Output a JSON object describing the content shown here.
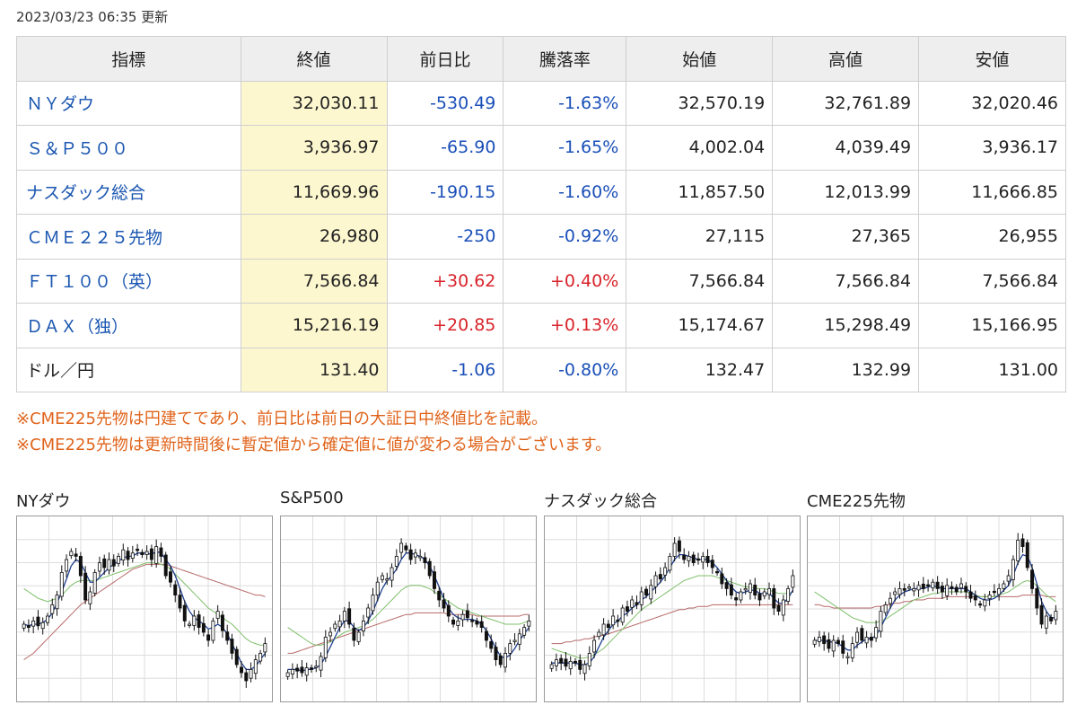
{
  "updated": "2023/03/23 06:35 更新",
  "table": {
    "headers": [
      "指標",
      "終値",
      "前日比",
      "騰落率",
      "始値",
      "高値",
      "安値"
    ],
    "rows": [
      {
        "name": "ＮＹダウ",
        "close": "32,030.11",
        "change": "-530.49",
        "rate": "-1.63%",
        "open": "32,570.19",
        "high": "32,761.89",
        "low": "32,020.46",
        "dir": "neg",
        "link": true
      },
      {
        "name": "Ｓ＆Ｐ５００",
        "close": "3,936.97",
        "change": "-65.90",
        "rate": "-1.65%",
        "open": "4,002.04",
        "high": "4,039.49",
        "low": "3,936.17",
        "dir": "neg",
        "link": true
      },
      {
        "name": "ナスダック総合",
        "close": "11,669.96",
        "change": "-190.15",
        "rate": "-1.60%",
        "open": "11,857.50",
        "high": "12,013.99",
        "low": "11,666.85",
        "dir": "neg",
        "link": true
      },
      {
        "name": "ＣＭＥ２２５先物",
        "close": "26,980",
        "change": "-250",
        "rate": "-0.92%",
        "open": "27,115",
        "high": "27,365",
        "low": "26,955",
        "dir": "neg",
        "link": true
      },
      {
        "name": "ＦＴ１００（英）",
        "close": "7,566.84",
        "change": "+30.62",
        "rate": "+0.40%",
        "open": "7,566.84",
        "high": "7,566.84",
        "low": "7,566.84",
        "dir": "pos",
        "link": true
      },
      {
        "name": "ＤＡＸ（独）",
        "close": "15,216.19",
        "change": "+20.85",
        "rate": "+0.13%",
        "open": "15,174.67",
        "high": "15,298.49",
        "low": "15,166.95",
        "dir": "pos",
        "link": true
      },
      {
        "name": "ドル／円",
        "close": "131.40",
        "change": "-1.06",
        "rate": "-0.80%",
        "open": "132.47",
        "high": "132.99",
        "low": "131.00",
        "dir": "neg",
        "link": false
      }
    ]
  },
  "notes": [
    "※CME225先物は円建てであり、前日比は前日の大証日中終値比を記載。",
    "※CME225先物は更新時間後に暫定値から確定値に値が変わる場合がございます。"
  ],
  "colors": {
    "up_candle": "#ffffff",
    "down_candle": "#111111",
    "ma_short": "#1f3f8f",
    "ma_mid": "#7fbf6a",
    "ma_long": "#b86a6a",
    "grid": "#dddddd"
  },
  "chart_data": [
    {
      "type": "candlestick",
      "title": "NYダウ",
      "closes": [
        0.4,
        0.38,
        0.42,
        0.39,
        0.41,
        0.45,
        0.52,
        0.58,
        0.72,
        0.8,
        0.85,
        0.82,
        0.7,
        0.55,
        0.6,
        0.72,
        0.78,
        0.75,
        0.8,
        0.76,
        0.82,
        0.86,
        0.8,
        0.84,
        0.86,
        0.83,
        0.85,
        0.8,
        0.88,
        0.82,
        0.7,
        0.66,
        0.58,
        0.5,
        0.42,
        0.4,
        0.45,
        0.38,
        0.35,
        0.3,
        0.42,
        0.48,
        0.36,
        0.3,
        0.22,
        0.15,
        0.1,
        0.05,
        0.12,
        0.18,
        0.22,
        0.28
      ],
      "ma_short": [
        0.4,
        0.39,
        0.4,
        0.4,
        0.41,
        0.43,
        0.47,
        0.53,
        0.6,
        0.68,
        0.76,
        0.8,
        0.78,
        0.72,
        0.66,
        0.66,
        0.69,
        0.72,
        0.75,
        0.77,
        0.79,
        0.81,
        0.82,
        0.82,
        0.84,
        0.84,
        0.84,
        0.83,
        0.85,
        0.84,
        0.8,
        0.76,
        0.7,
        0.62,
        0.54,
        0.48,
        0.44,
        0.42,
        0.4,
        0.37,
        0.38,
        0.4,
        0.38,
        0.34,
        0.28,
        0.22,
        0.16,
        0.12,
        0.12,
        0.14,
        0.18,
        0.22
      ],
      "ma_mid": [
        0.62,
        0.6,
        0.58,
        0.56,
        0.55,
        0.54,
        0.55,
        0.56,
        0.58,
        0.61,
        0.64,
        0.66,
        0.67,
        0.67,
        0.67,
        0.67,
        0.68,
        0.69,
        0.7,
        0.71,
        0.72,
        0.73,
        0.74,
        0.75,
        0.76,
        0.77,
        0.78,
        0.78,
        0.78,
        0.77,
        0.76,
        0.74,
        0.71,
        0.68,
        0.65,
        0.62,
        0.59,
        0.56,
        0.53,
        0.5,
        0.48,
        0.46,
        0.44,
        0.42,
        0.4,
        0.37,
        0.34,
        0.31,
        0.29,
        0.28,
        0.27,
        0.27
      ],
      "ma_long": [
        0.18,
        0.2,
        0.22,
        0.25,
        0.28,
        0.31,
        0.34,
        0.37,
        0.4,
        0.43,
        0.46,
        0.49,
        0.52,
        0.54,
        0.56,
        0.58,
        0.6,
        0.62,
        0.64,
        0.66,
        0.68,
        0.7,
        0.72,
        0.74,
        0.75,
        0.76,
        0.77,
        0.77,
        0.77,
        0.77,
        0.77,
        0.76,
        0.75,
        0.74,
        0.73,
        0.72,
        0.71,
        0.7,
        0.69,
        0.68,
        0.67,
        0.66,
        0.65,
        0.64,
        0.63,
        0.62,
        0.61,
        0.6,
        0.59,
        0.58,
        0.58,
        0.57
      ]
    },
    {
      "type": "candlestick",
      "title": "S&P500",
      "closes": [
        0.1,
        0.12,
        0.11,
        0.1,
        0.13,
        0.12,
        0.14,
        0.2,
        0.32,
        0.35,
        0.4,
        0.42,
        0.48,
        0.4,
        0.3,
        0.35,
        0.42,
        0.5,
        0.58,
        0.66,
        0.7,
        0.68,
        0.75,
        0.82,
        0.9,
        0.86,
        0.8,
        0.84,
        0.82,
        0.78,
        0.7,
        0.62,
        0.55,
        0.5,
        0.45,
        0.4,
        0.42,
        0.46,
        0.44,
        0.42,
        0.4,
        0.38,
        0.3,
        0.25,
        0.18,
        0.15,
        0.22,
        0.28,
        0.3,
        0.34,
        0.38,
        0.42
      ],
      "ma_short": [
        0.12,
        0.12,
        0.12,
        0.11,
        0.12,
        0.12,
        0.13,
        0.15,
        0.2,
        0.26,
        0.32,
        0.38,
        0.42,
        0.42,
        0.38,
        0.36,
        0.38,
        0.42,
        0.48,
        0.55,
        0.62,
        0.67,
        0.7,
        0.74,
        0.8,
        0.84,
        0.84,
        0.83,
        0.82,
        0.8,
        0.76,
        0.7,
        0.63,
        0.56,
        0.5,
        0.46,
        0.44,
        0.43,
        0.43,
        0.43,
        0.42,
        0.4,
        0.36,
        0.31,
        0.25,
        0.2,
        0.19,
        0.21,
        0.25,
        0.3,
        0.34,
        0.38
      ],
      "ma_mid": [
        0.38,
        0.36,
        0.34,
        0.32,
        0.3,
        0.28,
        0.27,
        0.27,
        0.28,
        0.29,
        0.31,
        0.33,
        0.35,
        0.36,
        0.37,
        0.38,
        0.39,
        0.41,
        0.43,
        0.46,
        0.49,
        0.52,
        0.55,
        0.58,
        0.61,
        0.63,
        0.64,
        0.64,
        0.64,
        0.63,
        0.62,
        0.6,
        0.58,
        0.56,
        0.54,
        0.52,
        0.5,
        0.49,
        0.48,
        0.47,
        0.46,
        0.45,
        0.44,
        0.43,
        0.42,
        0.41,
        0.4,
        0.4,
        0.4,
        0.4,
        0.41,
        0.42
      ],
      "ma_long": [
        0.22,
        0.22,
        0.23,
        0.24,
        0.25,
        0.26,
        0.27,
        0.28,
        0.29,
        0.3,
        0.31,
        0.32,
        0.33,
        0.34,
        0.35,
        0.36,
        0.37,
        0.38,
        0.39,
        0.4,
        0.41,
        0.42,
        0.43,
        0.44,
        0.45,
        0.46,
        0.46,
        0.47,
        0.47,
        0.47,
        0.47,
        0.47,
        0.47,
        0.47,
        0.46,
        0.46,
        0.46,
        0.46,
        0.46,
        0.46,
        0.45,
        0.45,
        0.45,
        0.45,
        0.45,
        0.45,
        0.45,
        0.45,
        0.45,
        0.45,
        0.46,
        0.46
      ]
    },
    {
      "type": "candlestick",
      "title": "ナスダック総合",
      "closes": [
        0.15,
        0.18,
        0.16,
        0.14,
        0.17,
        0.16,
        0.12,
        0.15,
        0.22,
        0.3,
        0.35,
        0.4,
        0.38,
        0.45,
        0.42,
        0.5,
        0.48,
        0.55,
        0.52,
        0.6,
        0.58,
        0.64,
        0.7,
        0.68,
        0.75,
        0.82,
        0.9,
        0.85,
        0.8,
        0.82,
        0.78,
        0.8,
        0.82,
        0.78,
        0.75,
        0.72,
        0.65,
        0.62,
        0.58,
        0.55,
        0.6,
        0.62,
        0.65,
        0.58,
        0.55,
        0.6,
        0.62,
        0.5,
        0.48,
        0.55,
        0.62,
        0.7
      ],
      "ma_short": [
        0.16,
        0.16,
        0.16,
        0.16,
        0.16,
        0.16,
        0.15,
        0.15,
        0.16,
        0.2,
        0.26,
        0.32,
        0.36,
        0.4,
        0.42,
        0.45,
        0.47,
        0.5,
        0.52,
        0.55,
        0.57,
        0.6,
        0.63,
        0.66,
        0.7,
        0.75,
        0.8,
        0.83,
        0.83,
        0.82,
        0.81,
        0.8,
        0.8,
        0.8,
        0.78,
        0.75,
        0.71,
        0.67,
        0.63,
        0.6,
        0.59,
        0.6,
        0.61,
        0.61,
        0.59,
        0.59,
        0.59,
        0.56,
        0.53,
        0.53,
        0.56,
        0.61
      ],
      "ma_mid": [
        0.25,
        0.24,
        0.23,
        0.22,
        0.21,
        0.2,
        0.19,
        0.19,
        0.2,
        0.21,
        0.23,
        0.25,
        0.28,
        0.31,
        0.34,
        0.37,
        0.4,
        0.43,
        0.46,
        0.49,
        0.51,
        0.53,
        0.55,
        0.57,
        0.59,
        0.61,
        0.63,
        0.65,
        0.67,
        0.68,
        0.69,
        0.7,
        0.7,
        0.7,
        0.7,
        0.69,
        0.68,
        0.67,
        0.66,
        0.65,
        0.64,
        0.63,
        0.63,
        0.62,
        0.62,
        0.62,
        0.61,
        0.6,
        0.59,
        0.59,
        0.59,
        0.6
      ],
      "ma_long": [
        0.28,
        0.28,
        0.28,
        0.29,
        0.29,
        0.3,
        0.3,
        0.31,
        0.31,
        0.32,
        0.33,
        0.33,
        0.34,
        0.35,
        0.36,
        0.37,
        0.38,
        0.39,
        0.4,
        0.41,
        0.42,
        0.43,
        0.44,
        0.45,
        0.46,
        0.47,
        0.48,
        0.49,
        0.49,
        0.5,
        0.5,
        0.51,
        0.51,
        0.51,
        0.52,
        0.52,
        0.52,
        0.52,
        0.52,
        0.52,
        0.52,
        0.52,
        0.52,
        0.52,
        0.52,
        0.52,
        0.52,
        0.52,
        0.52,
        0.52,
        0.52,
        0.52
      ]
    },
    {
      "type": "candlestick",
      "title": "CME225先物",
      "closes": [
        0.3,
        0.32,
        0.28,
        0.25,
        0.3,
        0.28,
        0.22,
        0.2,
        0.28,
        0.35,
        0.3,
        0.32,
        0.3,
        0.38,
        0.48,
        0.52,
        0.56,
        0.6,
        0.62,
        0.61,
        0.63,
        0.62,
        0.64,
        0.62,
        0.64,
        0.66,
        0.62,
        0.6,
        0.64,
        0.62,
        0.6,
        0.65,
        0.6,
        0.56,
        0.55,
        0.52,
        0.55,
        0.58,
        0.6,
        0.62,
        0.65,
        0.7,
        0.8,
        0.92,
        0.88,
        0.75,
        0.62,
        0.5,
        0.4,
        0.45,
        0.42,
        0.48
      ],
      "ma_short": [
        0.3,
        0.3,
        0.3,
        0.29,
        0.29,
        0.28,
        0.26,
        0.24,
        0.24,
        0.27,
        0.29,
        0.31,
        0.31,
        0.33,
        0.38,
        0.44,
        0.5,
        0.55,
        0.58,
        0.6,
        0.61,
        0.62,
        0.62,
        0.62,
        0.63,
        0.64,
        0.63,
        0.62,
        0.62,
        0.62,
        0.62,
        0.62,
        0.62,
        0.6,
        0.58,
        0.56,
        0.55,
        0.55,
        0.56,
        0.58,
        0.61,
        0.64,
        0.7,
        0.78,
        0.83,
        0.82,
        0.75,
        0.65,
        0.54,
        0.48,
        0.44,
        0.44
      ],
      "ma_mid": [
        0.6,
        0.58,
        0.56,
        0.54,
        0.52,
        0.5,
        0.48,
        0.46,
        0.44,
        0.43,
        0.42,
        0.41,
        0.41,
        0.41,
        0.42,
        0.43,
        0.45,
        0.47,
        0.49,
        0.51,
        0.53,
        0.55,
        0.56,
        0.57,
        0.58,
        0.59,
        0.59,
        0.6,
        0.6,
        0.6,
        0.6,
        0.6,
        0.6,
        0.59,
        0.58,
        0.57,
        0.57,
        0.57,
        0.57,
        0.58,
        0.59,
        0.6,
        0.62,
        0.64,
        0.66,
        0.67,
        0.66,
        0.64,
        0.61,
        0.58,
        0.56,
        0.54
      ],
      "ma_long": [
        0.52,
        0.52,
        0.51,
        0.51,
        0.5,
        0.5,
        0.5,
        0.5,
        0.5,
        0.5,
        0.5,
        0.5,
        0.5,
        0.51,
        0.51,
        0.52,
        0.52,
        0.53,
        0.53,
        0.54,
        0.54,
        0.55,
        0.55,
        0.55,
        0.56,
        0.56,
        0.56,
        0.56,
        0.57,
        0.57,
        0.57,
        0.57,
        0.57,
        0.57,
        0.57,
        0.57,
        0.57,
        0.57,
        0.57,
        0.57,
        0.57,
        0.57,
        0.57,
        0.57,
        0.58,
        0.58,
        0.58,
        0.58,
        0.58,
        0.57,
        0.57,
        0.57
      ]
    }
  ]
}
